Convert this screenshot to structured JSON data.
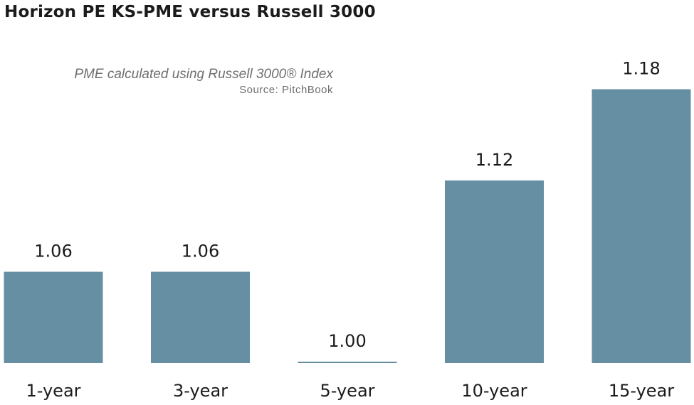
{
  "title": "Horizon PE KS-PME versus Russell 3000",
  "subtitle": "PME calculated using Russell 3000® Index",
  "source": "Source: PitchBook",
  "colors": {
    "bar": "#668fa3",
    "title": "#1b1b1b",
    "note": "#6f6f6f",
    "label": "#1b1b1b"
  },
  "chart_data": {
    "type": "bar",
    "title": "Horizon PE KS-PME versus Russell 3000",
    "subtitle": "PME calculated using Russell 3000® Index",
    "source": "Source: PitchBook",
    "categories": [
      "1-year",
      "3-year",
      "5-year",
      "10-year",
      "15-year"
    ],
    "values": [
      1.06,
      1.06,
      1.0,
      1.12,
      1.18
    ],
    "value_labels": [
      "1.06",
      "1.06",
      "1.00",
      "1.12",
      "1.18"
    ],
    "xlabel": "",
    "ylabel": "",
    "ylim": [
      1.0,
      1.184
    ],
    "grid": false,
    "legend": "none"
  }
}
